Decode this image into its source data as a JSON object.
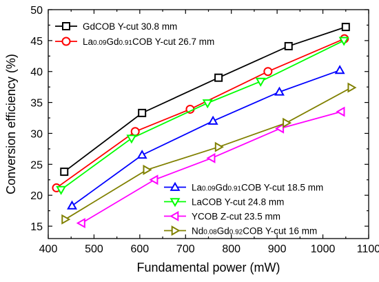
{
  "chart_data": {
    "type": "line",
    "xlabel": "Fundamental power (mW)",
    "ylabel": "Conversion efficiency (%)",
    "xlim": [
      400,
      1100
    ],
    "ylim": [
      13,
      50
    ],
    "xticks": [
      400,
      500,
      600,
      700,
      800,
      900,
      1000,
      1100
    ],
    "yticks": [
      15,
      20,
      25,
      30,
      35,
      40,
      45,
      50
    ],
    "grid": false,
    "series": [
      {
        "name": "GdCOB Y-cut 30.8 mm",
        "name_parts": [
          {
            "t": "GdCOB Y-cut 30.8 mm"
          }
        ],
        "color": "#000000",
        "marker": "square",
        "legend": "top-left",
        "x": [
          435,
          605,
          772,
          925,
          1050
        ],
        "y": [
          23.8,
          33.3,
          39.0,
          44.1,
          47.2
        ]
      },
      {
        "name": "La0.09Gd0.91COB Y-cut 26.7 mm",
        "name_parts": [
          {
            "t": "La"
          },
          {
            "t": "0.09",
            "sub": true
          },
          {
            "t": "Gd"
          },
          {
            "t": "0.91",
            "sub": true
          },
          {
            "t": "COB Y-cut  26.7 mm"
          }
        ],
        "color": "#ff0000",
        "marker": "circle",
        "legend": "top-left",
        "x": [
          418,
          590,
          710,
          880,
          1047
        ],
        "y": [
          21.2,
          30.3,
          33.9,
          40.0,
          45.3
        ]
      },
      {
        "name": "La0.09Gd0.91COB Y-cut 18.5 mm",
        "name_parts": [
          {
            "t": "La"
          },
          {
            "t": "0.09",
            "sub": true
          },
          {
            "t": "Gd"
          },
          {
            "t": "0.91",
            "sub": true
          },
          {
            "t": "COB Y-cut  18.5 mm"
          }
        ],
        "color": "#0000ff",
        "marker": "triangle-up",
        "legend": "bottom-right",
        "x": [
          452,
          605,
          760,
          905,
          1037
        ],
        "y": [
          18.3,
          26.5,
          32.0,
          36.7,
          40.2
        ]
      },
      {
        "name": "LaCOB Y-cut 24.8 mm",
        "name_parts": [
          {
            "t": "LaCOB Y-cut 24.8 mm"
          }
        ],
        "color": "#00ff00",
        "marker": "triangle-down",
        "legend": "bottom-right",
        "x": [
          428,
          582,
          748,
          864,
          1046
        ],
        "y": [
          20.9,
          29.2,
          34.9,
          38.4,
          45.0
        ]
      },
      {
        "name": "YCOB Z-cut 23.5 mm",
        "name_parts": [
          {
            "t": "YCOB Z-cut 23.5 mm"
          }
        ],
        "color": "#ff00ff",
        "marker": "triangle-left",
        "legend": "bottom-right",
        "x": [
          473,
          632,
          757,
          907,
          1040
        ],
        "y": [
          15.5,
          22.5,
          26.0,
          30.8,
          33.5
        ]
      },
      {
        "name": "Nd0.08Gd0.92COB Y-cut 16 mm",
        "name_parts": [
          {
            "t": "Nd"
          },
          {
            "t": "0.08",
            "sub": true
          },
          {
            "t": "Gd"
          },
          {
            "t": "0.92",
            "sub": true
          },
          {
            "t": "COB Y-cut 16 mm"
          }
        ],
        "color": "#808000",
        "marker": "triangle-right",
        "legend": "bottom-right",
        "x": [
          437,
          615,
          772,
          920,
          1062
        ],
        "y": [
          16.1,
          24.1,
          27.8,
          31.7,
          37.4
        ]
      }
    ]
  }
}
